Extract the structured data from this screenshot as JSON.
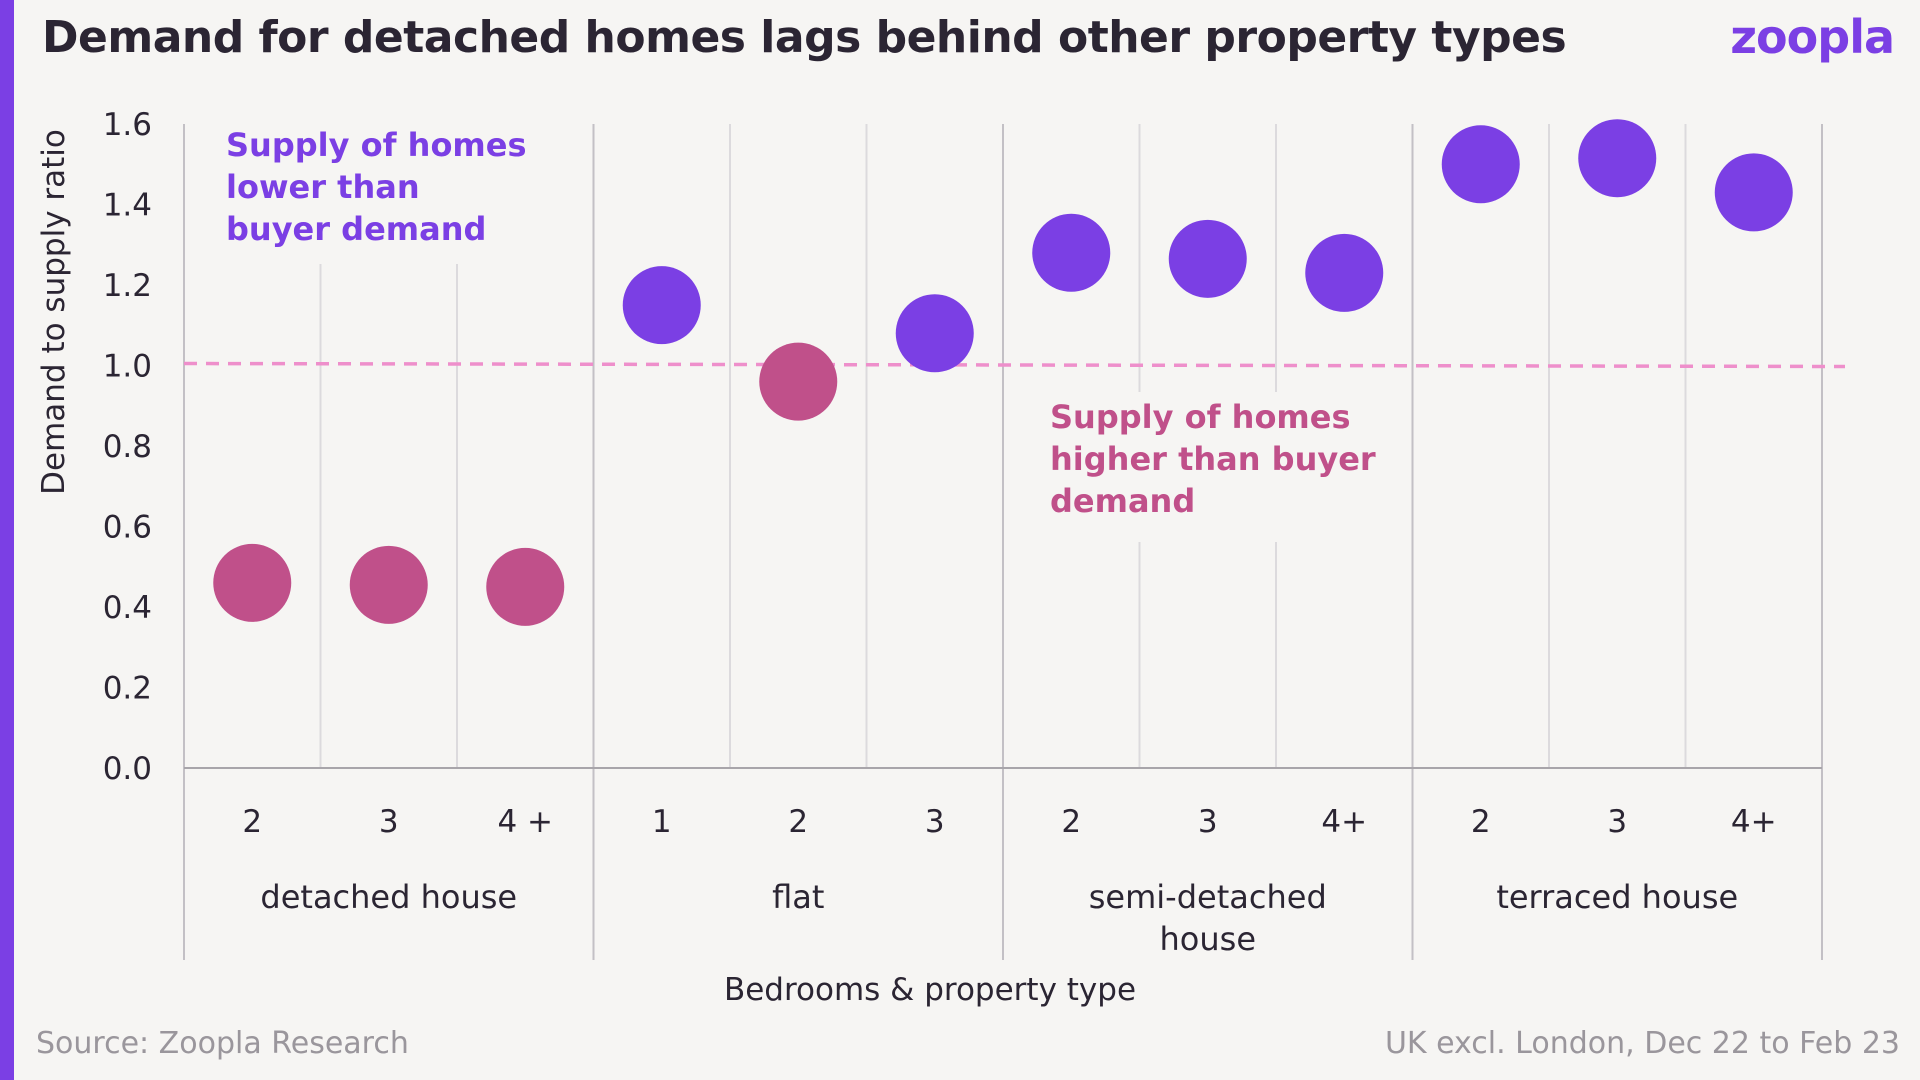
{
  "header": {
    "title": "Demand for detached homes lags behind other property types",
    "brand": "zoopla"
  },
  "footer": {
    "source": "Source: Zoopla Research",
    "region": "UK excl. London, Dec 22 to Feb 23"
  },
  "colors": {
    "above_ratio": "#7b3fe4",
    "below_ratio": "#c0508a",
    "reference_line": "#ee8fcb",
    "accent_bar": "#7b3fe4"
  },
  "annotations": {
    "above": [
      "Supply of homes",
      "lower than",
      "buyer demand"
    ],
    "below": [
      "Supply of homes",
      "higher than buyer",
      "demand"
    ]
  },
  "chart_data": {
    "type": "scatter",
    "title": "Demand for detached homes lags behind other property types",
    "ylabel": "Demand to supply ratio",
    "xlabel": "Bedrooms & property type",
    "ylim": [
      0,
      1.6
    ],
    "yticks": [
      "0.0",
      "0.2",
      "0.4",
      "0.6",
      "0.8",
      "1.0",
      "1.2",
      "1.4",
      "1.6"
    ],
    "reference_line": 1.0,
    "grid": true,
    "groups": [
      {
        "label": [
          "detached house"
        ],
        "categories": [
          "2",
          "3",
          "4 +"
        ],
        "values": [
          0.46,
          0.455,
          0.45
        ]
      },
      {
        "label": [
          "flat"
        ],
        "categories": [
          "1",
          "2",
          "3"
        ],
        "values": [
          1.15,
          0.96,
          1.08
        ]
      },
      {
        "label": [
          "semi-detached",
          "house"
        ],
        "categories": [
          "2",
          "3",
          "4+"
        ],
        "values": [
          1.28,
          1.265,
          1.23
        ]
      },
      {
        "label": [
          "terraced house"
        ],
        "categories": [
          "2",
          "3",
          "4+"
        ],
        "values": [
          1.5,
          1.515,
          1.43
        ]
      }
    ]
  }
}
